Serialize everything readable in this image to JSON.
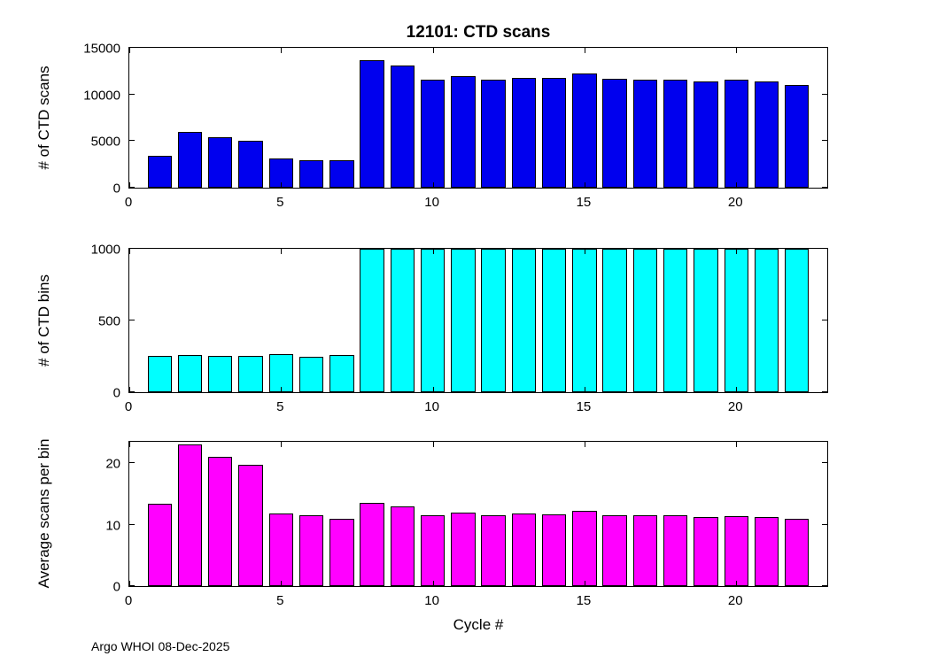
{
  "page": {
    "xlabel": "Cycle #",
    "footer": "Argo WHOI 08-Dec-2025",
    "background": "#FFFFFF"
  },
  "chart_data": [
    {
      "type": "bar",
      "title": "12101: CTD scans",
      "ylabel": "# of CTD scans",
      "color": "#0000EE",
      "x": [
        1,
        2,
        3,
        4,
        5,
        6,
        7,
        8,
        9,
        10,
        11,
        12,
        13,
        14,
        15,
        16,
        17,
        18,
        19,
        20,
        21,
        22
      ],
      "values": [
        3400,
        5950,
        5400,
        5050,
        3100,
        2900,
        2900,
        13700,
        13100,
        11600,
        12000,
        11600,
        11800,
        11800,
        12250,
        11700,
        11600,
        11600,
        11350,
        11600,
        11350,
        11050
      ],
      "bar_width": 0.8,
      "xlim": [
        0,
        23
      ],
      "ylim": [
        0,
        15000
      ],
      "xticks": [
        0,
        5,
        10,
        15,
        20
      ],
      "yticks": [
        0,
        5000,
        10000,
        15000
      ],
      "grid": false,
      "legend": null
    },
    {
      "type": "bar",
      "title": "",
      "ylabel": "# of CTD bins",
      "color": "#00FFFF",
      "x": [
        1,
        2,
        3,
        4,
        5,
        6,
        7,
        8,
        9,
        10,
        11,
        12,
        13,
        14,
        15,
        16,
        17,
        18,
        19,
        20,
        21,
        22
      ],
      "values": [
        253,
        258,
        256,
        252,
        265,
        250,
        258,
        1000,
        1000,
        1000,
        1000,
        1000,
        1000,
        1000,
        1000,
        1000,
        1000,
        1000,
        1000,
        1000,
        1000,
        1000
      ],
      "bar_width": 0.8,
      "xlim": [
        0,
        23
      ],
      "ylim": [
        0,
        1000
      ],
      "xticks": [
        0,
        5,
        10,
        15,
        20
      ],
      "yticks": [
        0,
        500,
        1000
      ],
      "grid": false,
      "legend": null
    },
    {
      "type": "bar",
      "title": "",
      "ylabel": "Average scans per bin",
      "xlabel": "Cycle #",
      "color": "#FF00FF",
      "x": [
        1,
        2,
        3,
        4,
        5,
        6,
        7,
        8,
        9,
        10,
        11,
        12,
        13,
        14,
        15,
        16,
        17,
        18,
        19,
        20,
        21,
        22
      ],
      "values": [
        13.4,
        23.0,
        21.0,
        19.8,
        11.8,
        11.5,
        11.0,
        13.6,
        13.0,
        11.6,
        12.0,
        11.6,
        11.8,
        11.7,
        12.3,
        11.6,
        11.5,
        11.5,
        11.3,
        11.4,
        11.3,
        11.0
      ],
      "bar_width": 0.8,
      "xlim": [
        0,
        23
      ],
      "ylim": [
        0,
        23.5
      ],
      "xticks": [
        0,
        5,
        10,
        15,
        20
      ],
      "yticks": [
        0,
        10,
        20
      ],
      "grid": false,
      "legend": null
    }
  ]
}
